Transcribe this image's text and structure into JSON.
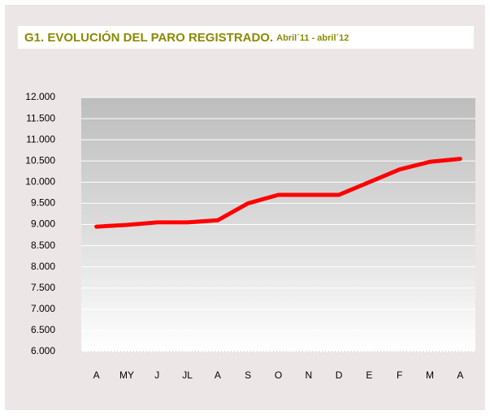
{
  "chart_data": {
    "type": "line",
    "title": "G1. EVOLUCIÓN DEL PARO REGISTRADO.",
    "subtitle": "Abril´11 - abril´12",
    "categories": [
      "A",
      "MY",
      "J",
      "JL",
      "A",
      "S",
      "O",
      "N",
      "D",
      "E",
      "F",
      "M",
      "A"
    ],
    "series": [
      {
        "name": "Paro registrado",
        "color": "#ff0000",
        "values": [
          8950,
          8990,
          9050,
          9050,
          9100,
          9500,
          9700,
          9700,
          9700,
          10000,
          10300,
          10480,
          10550
        ]
      }
    ],
    "ylim": [
      6000,
      12000
    ],
    "yticks": [
      {
        "value": 6000,
        "label": "6.000"
      },
      {
        "value": 6500,
        "label": "6.500"
      },
      {
        "value": 7000,
        "label": "7.000"
      },
      {
        "value": 7500,
        "label": "7.500"
      },
      {
        "value": 8000,
        "label": "8.000"
      },
      {
        "value": 8500,
        "label": "8.500"
      },
      {
        "value": 9000,
        "label": "9.000"
      },
      {
        "value": 9500,
        "label": "9.500"
      },
      {
        "value": 10000,
        "label": "10.000"
      },
      {
        "value": 10500,
        "label": "10.500"
      },
      {
        "value": 11000,
        "label": "11.000"
      },
      {
        "value": 11500,
        "label": "11.500"
      },
      {
        "value": 12000,
        "label": "12.000"
      }
    ],
    "grid": true
  }
}
